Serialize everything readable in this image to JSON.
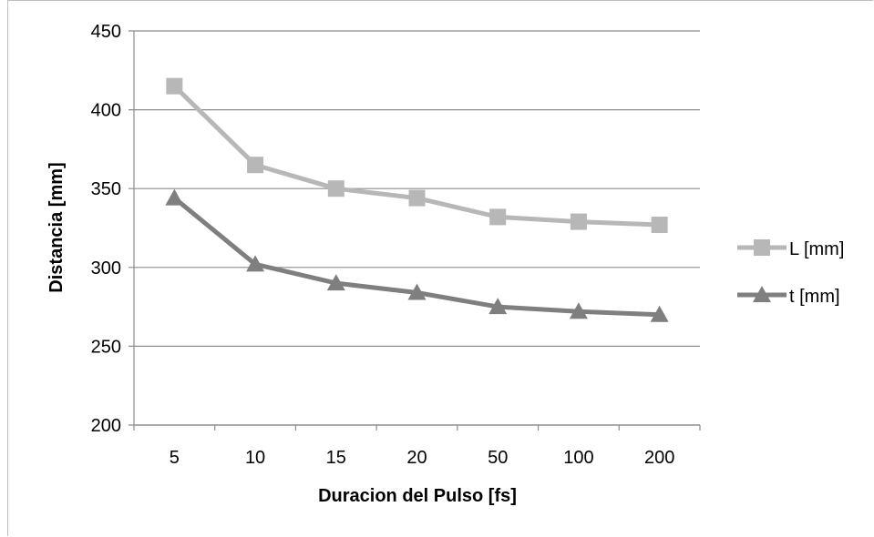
{
  "chart_data": {
    "type": "line",
    "title": "",
    "xlabel": "Duracion del Pulso [fs]",
    "ylabel": "Distancia [mm]",
    "categories": [
      "5",
      "10",
      "15",
      "20",
      "50",
      "100",
      "200"
    ],
    "ylim": [
      200,
      450
    ],
    "yticks": [
      200,
      250,
      300,
      350,
      400,
      450
    ],
    "grid": "horizontal",
    "legend_position": "right",
    "series": [
      {
        "name": "L [mm]",
        "marker": "square",
        "color": "#b7b7b7",
        "values": [
          415,
          365,
          350,
          344,
          332,
          329,
          327
        ]
      },
      {
        "name": "t [mm]",
        "marker": "triangle",
        "color": "#7f7f7f",
        "values": [
          344,
          302,
          290,
          284,
          275,
          272,
          270
        ]
      }
    ]
  }
}
